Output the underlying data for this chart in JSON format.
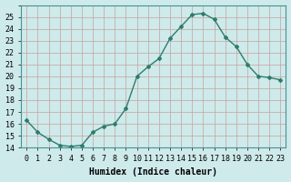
{
  "x": [
    0,
    1,
    2,
    3,
    4,
    5,
    6,
    7,
    8,
    9,
    10,
    11,
    12,
    13,
    14,
    15,
    16,
    17,
    18,
    19,
    20,
    21,
    22,
    23
  ],
  "y": [
    16.3,
    15.3,
    14.7,
    14.2,
    14.1,
    14.2,
    15.3,
    15.8,
    16.0,
    17.3,
    20.0,
    20.8,
    21.5,
    23.2,
    24.2,
    25.2,
    25.3,
    24.8,
    23.3,
    22.5,
    21.0,
    20.0,
    19.9,
    19.7
  ],
  "line_color": "#2d7d6e",
  "marker": "D",
  "marker_size": 2,
  "line_width": 1.0,
  "bg_color": "#ceeaea",
  "grid_color_major": "#c8a0a0",
  "xlabel": "Humidex (Indice chaleur)",
  "xlabel_fontsize": 7,
  "tick_fontsize": 6,
  "ylim": [
    14,
    26
  ],
  "yticks": [
    14,
    15,
    16,
    17,
    18,
    19,
    20,
    21,
    22,
    23,
    24,
    25
  ],
  "xlim": [
    -0.5,
    23.5
  ],
  "xticks": [
    0,
    1,
    2,
    3,
    4,
    5,
    6,
    7,
    8,
    9,
    10,
    11,
    12,
    13,
    14,
    15,
    16,
    17,
    18,
    19,
    20,
    21,
    22,
    23
  ]
}
